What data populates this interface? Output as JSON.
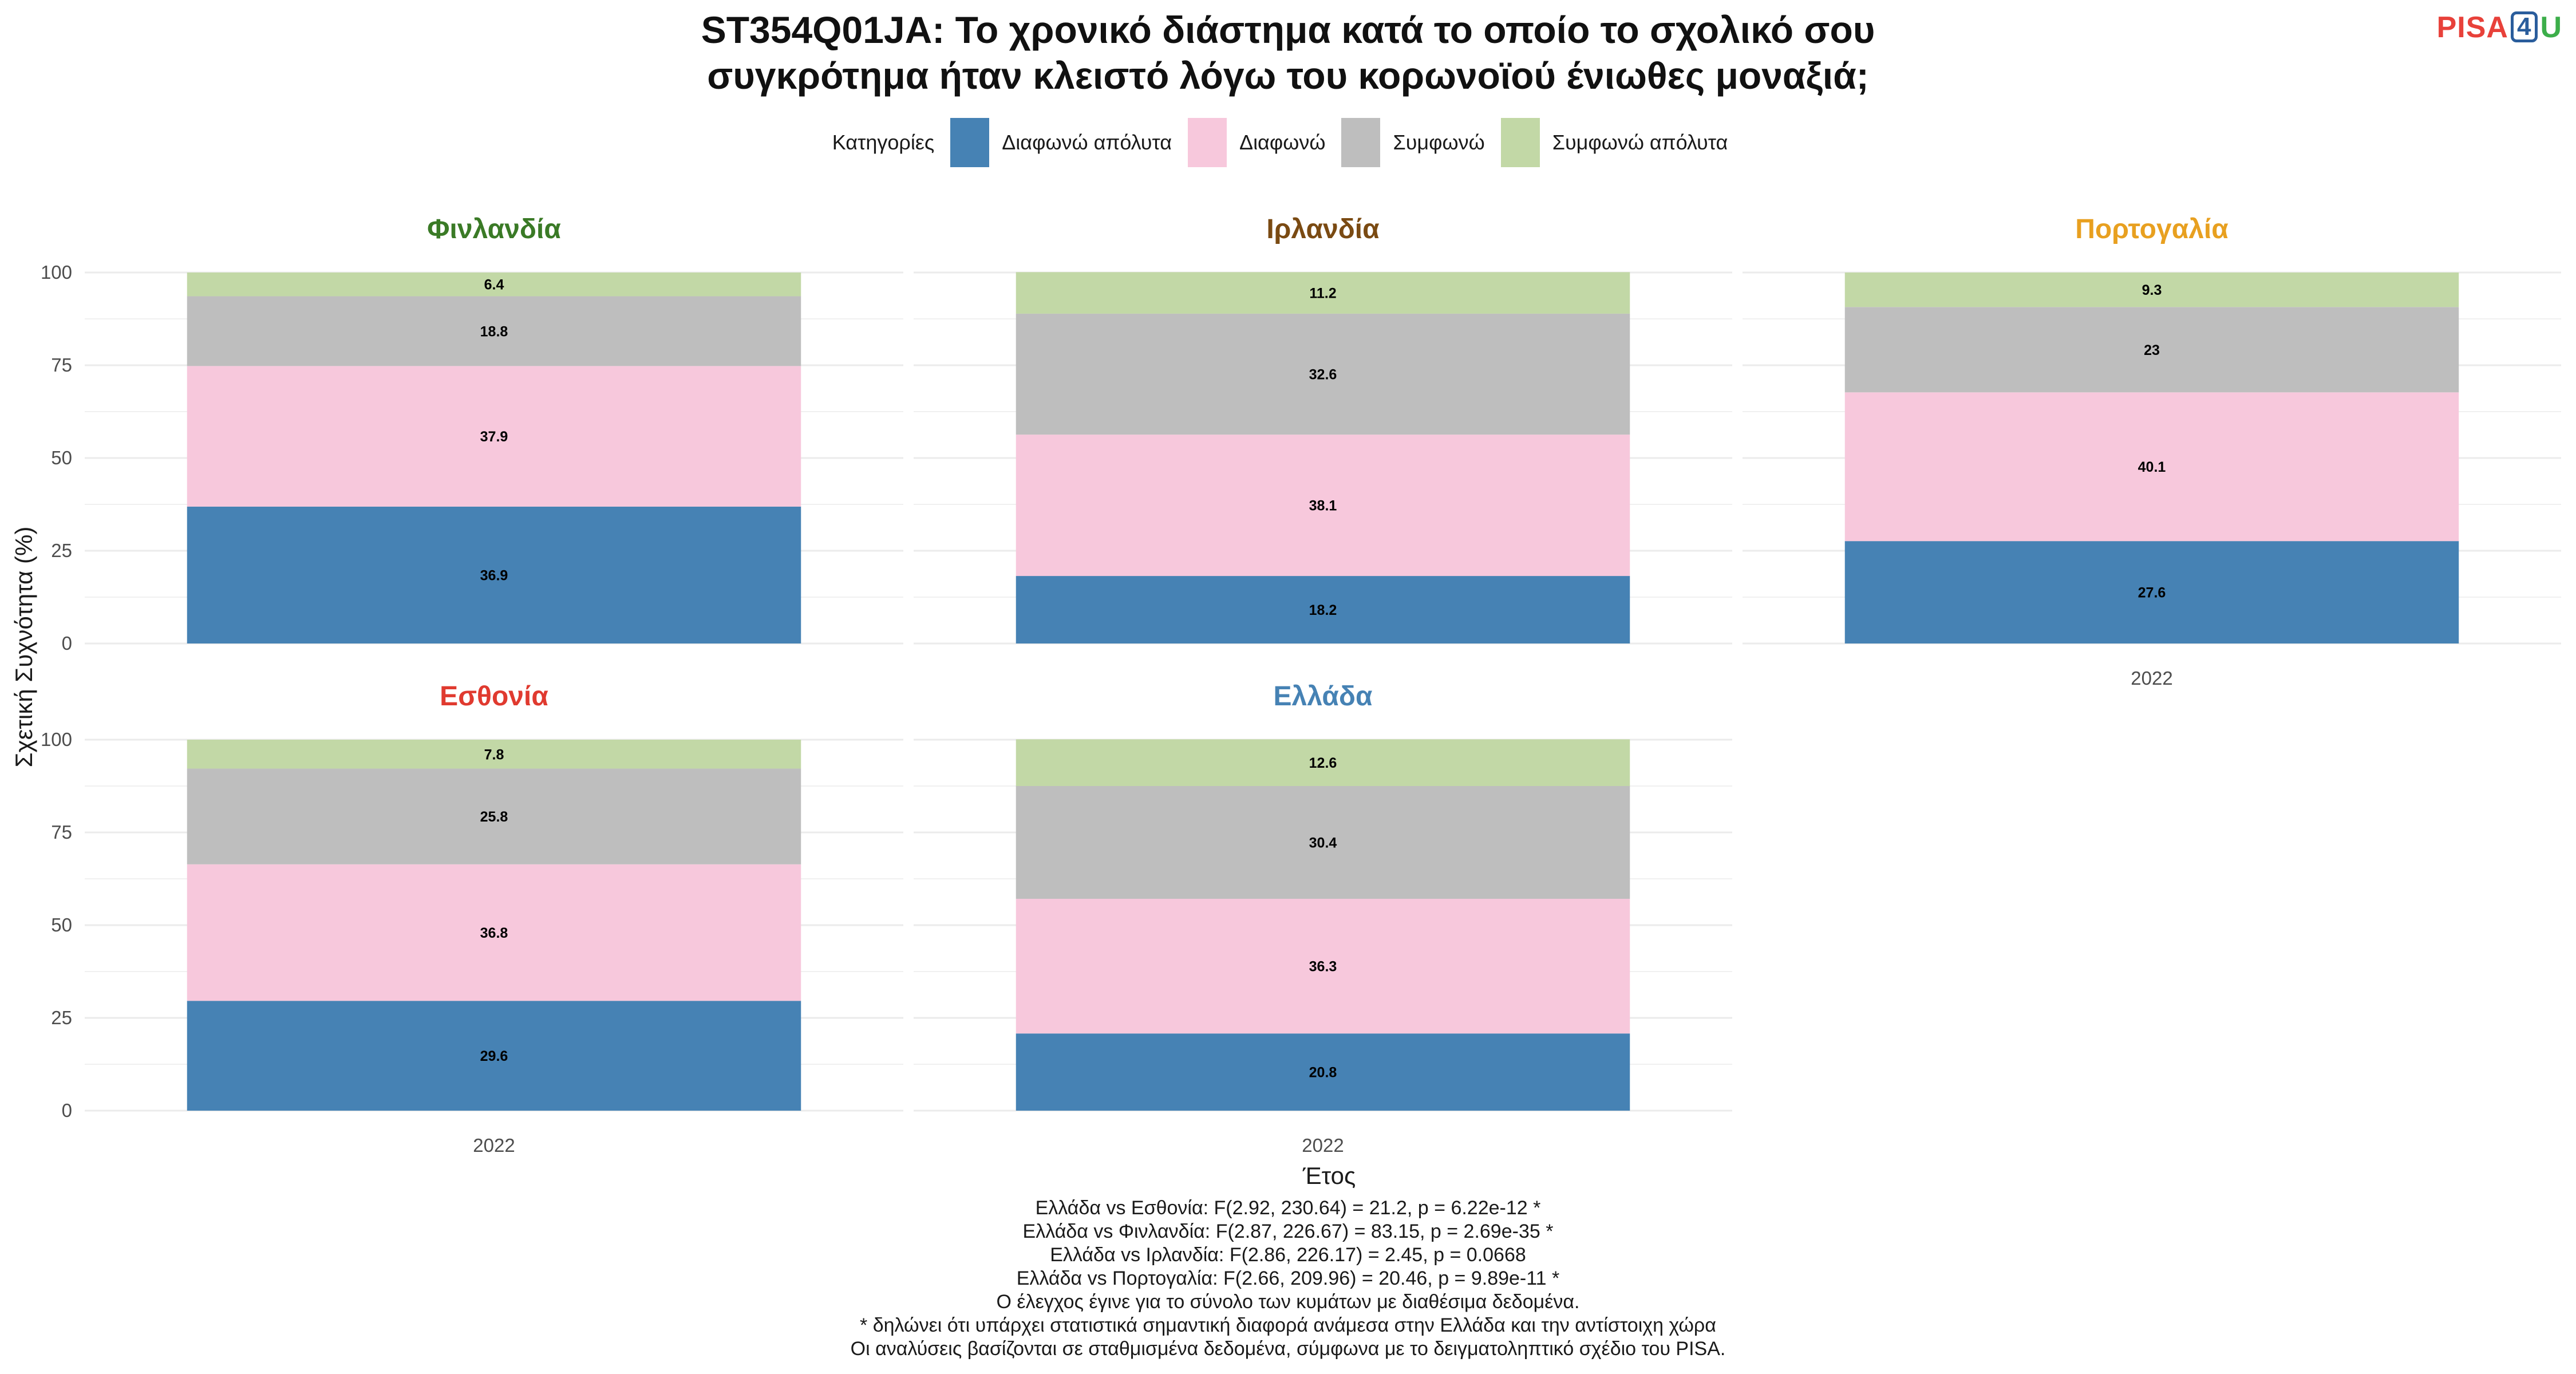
{
  "header": {
    "title_line1": "ST354Q01JA: Το χρονικό διάστημα κατά το οποίο το σχολικό σου",
    "title_line2": "συγκρότημα ήταν κλειστό λόγω του κορωνοϊού ένιωθες μοναξιά;",
    "logo_pisa": "PISA",
    "logo_four": "4",
    "logo_u": "U"
  },
  "legend": {
    "title": "Κατηγορίες",
    "items": [
      {
        "label": "Διαφωνώ απόλυτα",
        "color": "#4682b4"
      },
      {
        "label": "Διαφωνώ",
        "color": "#f7c8dc"
      },
      {
        "label": "Συμφωνώ",
        "color": "#bebebe"
      },
      {
        "label": "Συμφωνώ απόλυτα",
        "color": "#c2d8a6"
      }
    ]
  },
  "chart_data": {
    "type": "bar",
    "stacked": true,
    "xlabel": "Έτος",
    "ylabel": "Σχετική Συχνότητα (%)",
    "ylim": [
      0,
      100
    ],
    "yticks": [
      0,
      25,
      50,
      75,
      100
    ],
    "grid": true,
    "legend_position": "top",
    "categories": [
      "2022"
    ],
    "series_names": [
      "Διαφωνώ απόλυτα",
      "Διαφωνώ",
      "Συμφωνώ",
      "Συμφωνώ απόλυτα"
    ],
    "colors": [
      "#4682b4",
      "#f7c8dc",
      "#bebebe",
      "#c2d8a6"
    ],
    "facets": [
      {
        "name": "Φινλανδία",
        "title_color": "#3a7a26",
        "x": "2022",
        "values": [
          36.9,
          37.9,
          18.8,
          6.4
        ],
        "labels": [
          "36.9",
          "37.9",
          "18.8",
          "6.4"
        ]
      },
      {
        "name": "Ιρλανδία",
        "title_color": "#7a4a12",
        "x": "2022",
        "values": [
          18.2,
          38.1,
          32.6,
          11.2
        ],
        "labels": [
          "18.2",
          "38.1",
          "32.6",
          "11.2"
        ]
      },
      {
        "name": "Πορτογαλία",
        "title_color": "#e8a020",
        "x": "2022",
        "values": [
          27.6,
          40.1,
          23,
          9.3
        ],
        "labels": [
          "27.6",
          "40.1",
          "23",
          "9.3"
        ]
      },
      {
        "name": "Εσθονία",
        "title_color": "#e03a2f",
        "x": "2022",
        "values": [
          29.6,
          36.8,
          25.8,
          7.8
        ],
        "labels": [
          "29.6",
          "36.8",
          "25.8",
          "7.8"
        ]
      },
      {
        "name": "Ελλάδα",
        "title_color": "#4682b4",
        "x": "2022",
        "values": [
          20.8,
          36.3,
          30.4,
          12.6
        ],
        "labels": [
          "20.8",
          "36.3",
          "30.4",
          "12.6"
        ]
      }
    ]
  },
  "notes": [
    "Ελλάδα vs Εσθονία: F(2.92, 230.64) = 21.2, p = 6.22e-12 *",
    "Ελλάδα vs Φινλανδία: F(2.87, 226.67) = 83.15, p = 2.69e-35 *",
    "Ελλάδα vs Ιρλανδία: F(2.86, 226.17) = 2.45, p = 0.0668",
    "Ελλάδα vs Πορτογαλία: F(2.66, 209.96) = 20.46, p = 9.89e-11 *",
    "Ο έλεγχος έγινε για το σύνολο των κυμάτων με διαθέσιμα δεδομένα.",
    "* δηλώνει ότι υπάρχει στατιστικά σημαντική διαφορά ανάμεσα στην Ελλάδα και την αντίστοιχη χώρα",
    "Οι αναλύσεις βασίζονται σε σταθμισμένα δεδομένα, σύμφωνα με το δειγματοληπτικό σχέδιο του PISA."
  ]
}
